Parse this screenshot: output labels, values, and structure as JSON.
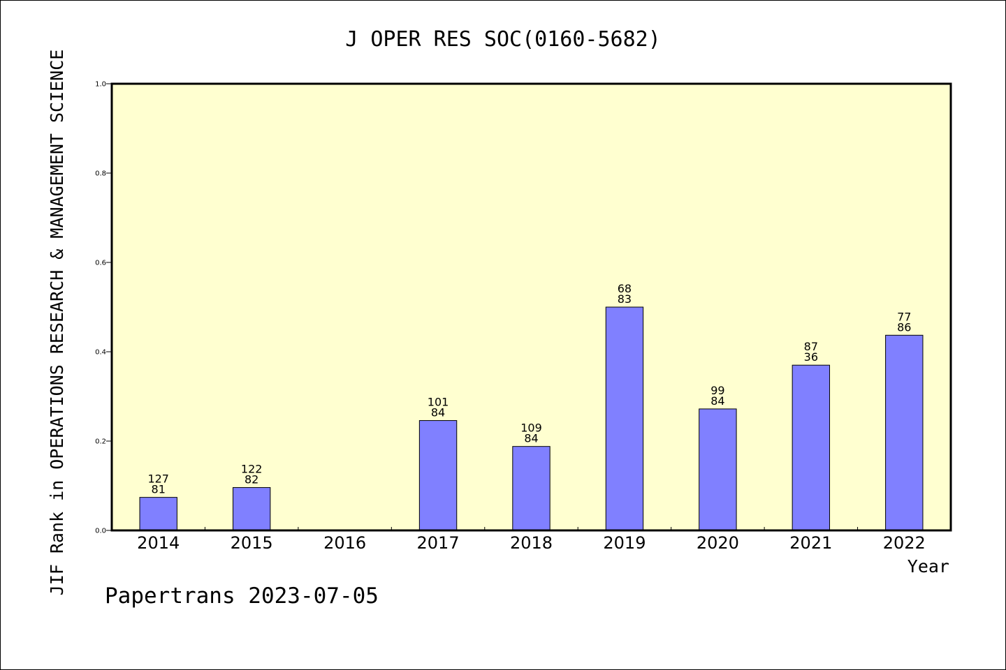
{
  "chart_data": {
    "type": "bar",
    "title": "J OPER RES SOC(0160-5682)",
    "xlabel": "Year",
    "ylabel": "JIF Rank in OPERATIONS RESEARCH & MANAGEMENT SCIENCE",
    "ylim": [
      0,
      1
    ],
    "yticks": [
      "0.0",
      "0.2",
      "0.4",
      "0.6",
      "0.8",
      "1.0"
    ],
    "categories": [
      "2014",
      "2015",
      "2016",
      "2017",
      "2018",
      "2019",
      "2020",
      "2021",
      "2022"
    ],
    "values": [
      0.074,
      0.096,
      null,
      0.246,
      0.188,
      0.5,
      0.272,
      0.37,
      0.437
    ],
    "labels": [
      [
        "127",
        "81"
      ],
      [
        "122",
        "82"
      ],
      null,
      [
        "101",
        "84"
      ],
      [
        "109",
        "84"
      ],
      [
        "68",
        "83"
      ],
      [
        "99",
        "84"
      ],
      [
        "87",
        "36"
      ],
      [
        "77",
        "86"
      ]
    ],
    "bar_color": "#8080ff",
    "plot_background": "#ffffd0",
    "grid": false
  },
  "footer": {
    "credit": "Papertrans 2023-07-05"
  }
}
